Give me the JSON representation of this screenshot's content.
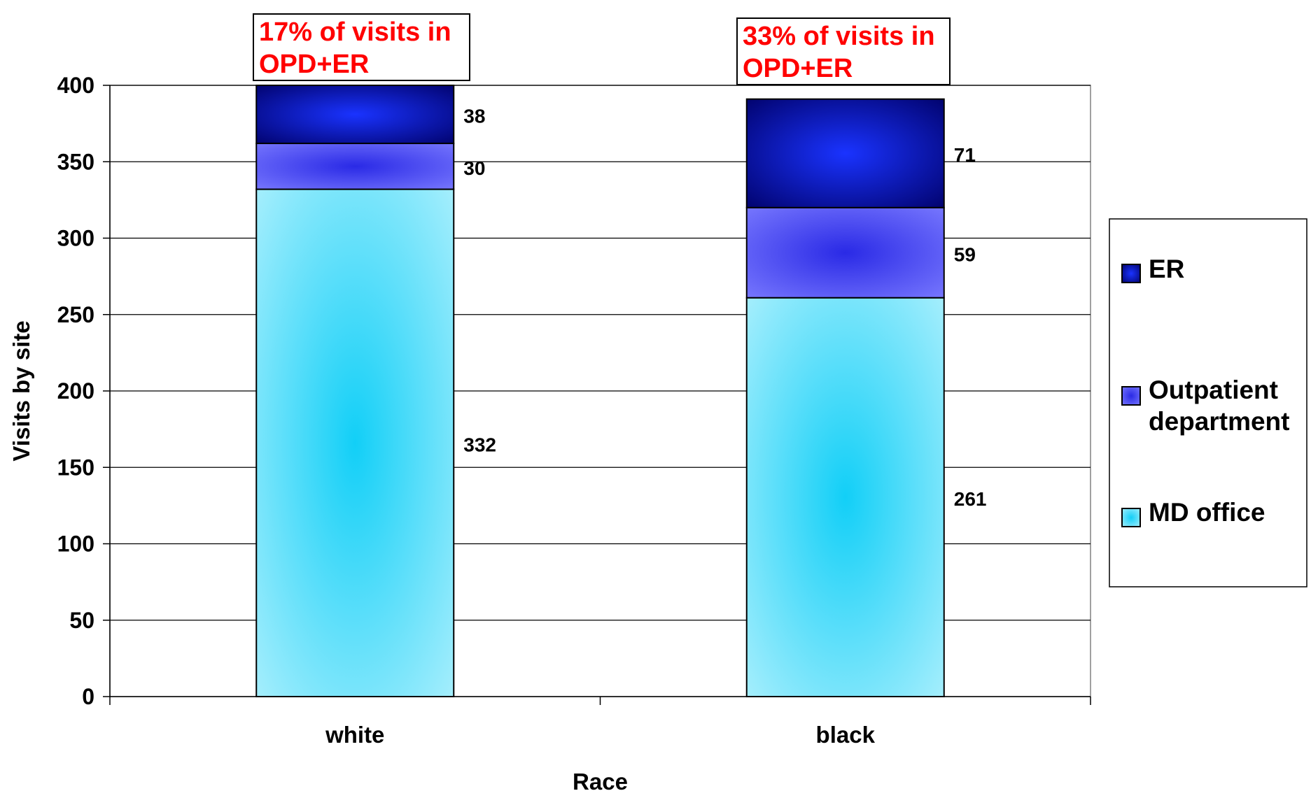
{
  "chart_data": {
    "type": "bar",
    "stacked": true,
    "categories": [
      "white",
      "black"
    ],
    "series": [
      {
        "name": "MD office",
        "values": [
          332,
          261
        ],
        "color": "#12cff7",
        "light": "#aef0fd"
      },
      {
        "name": "Outpatient department",
        "values": [
          30,
          59
        ],
        "color": "#2a2ae6",
        "light": "#7b7bff"
      },
      {
        "name": "ER",
        "values": [
          38,
          71
        ],
        "color": "#1a33ff",
        "light": "#000066"
      }
    ],
    "legend_order": [
      "ER",
      "Outpatient department",
      "MD office"
    ],
    "legend_position": "right",
    "title": "",
    "xlabel": "Race",
    "ylabel": "Visits by site",
    "ylim": [
      0,
      400
    ],
    "yticks": [
      0,
      50,
      100,
      150,
      200,
      250,
      300,
      350,
      400
    ],
    "grid": true,
    "annotations": [
      {
        "category": "white",
        "lines": [
          "17% of visits in",
          "OPD+ER"
        ]
      },
      {
        "category": "black",
        "lines": [
          "33% of visits in",
          "OPD+ER"
        ]
      }
    ],
    "annotation_color": "#ff0000"
  }
}
